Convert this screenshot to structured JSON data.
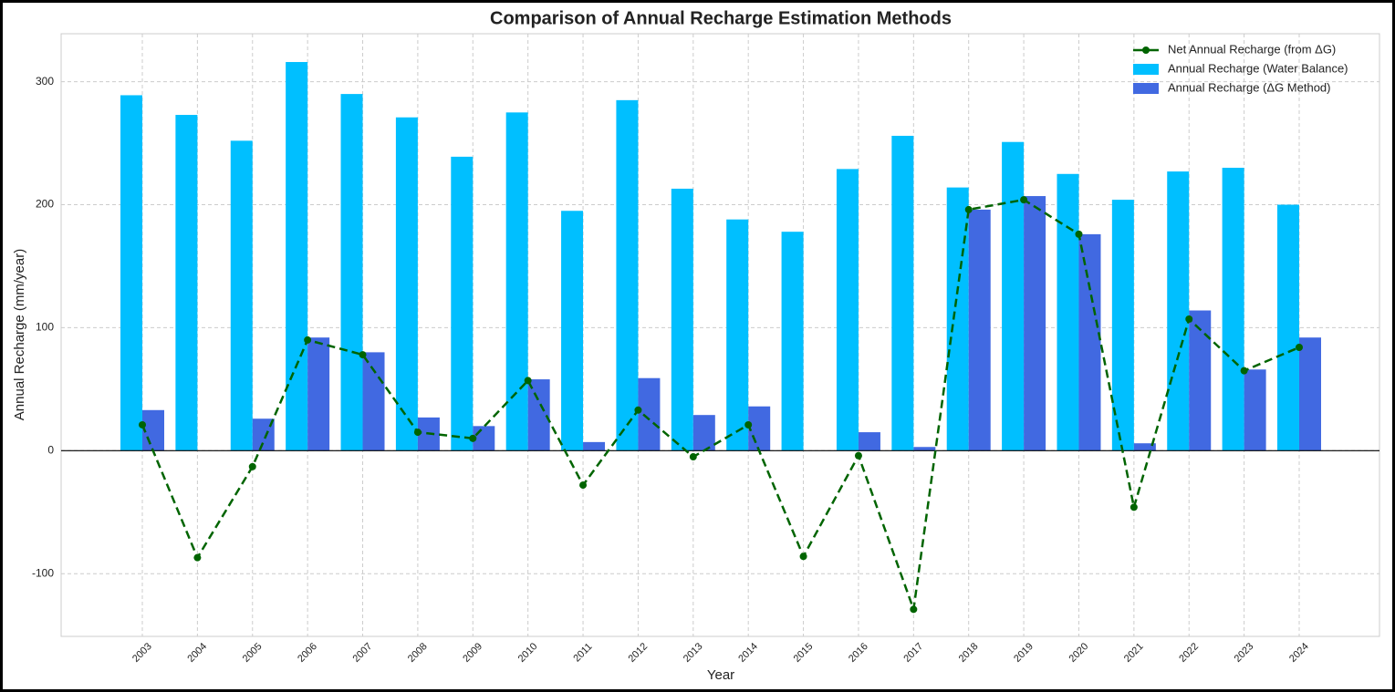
{
  "chart_data": {
    "type": "bar_line",
    "title": "Comparison of Annual Recharge Estimation Methods",
    "x_label": "Year",
    "y_label": "Annual Recharge (mm/year)",
    "categories": [
      "2003",
      "2004",
      "2005",
      "2006",
      "2007",
      "2008",
      "2009",
      "2010",
      "2011",
      "2012",
      "2013",
      "2014",
      "2015",
      "2016",
      "2017",
      "2018",
      "2019",
      "2020",
      "2021",
      "2022",
      "2023",
      "2024"
    ],
    "series": [
      {
        "name": "Net Annual Recharge (from ΔG)",
        "type": "line",
        "color": "#006400",
        "values": [
          21,
          -87,
          -13,
          90,
          78,
          15,
          10,
          57,
          -28,
          33,
          -5,
          21,
          -86,
          -4,
          -129,
          196,
          204,
          176,
          -46,
          107,
          65,
          84
        ]
      },
      {
        "name": "Annual Recharge (Water Balance)",
        "type": "bar",
        "color": "#00bfff",
        "values": [
          289,
          273,
          252,
          316,
          290,
          271,
          239,
          275,
          195,
          285,
          213,
          188,
          178,
          229,
          256,
          214,
          251,
          225,
          204,
          227,
          230,
          200
        ]
      },
      {
        "name": "Annual Recharge (ΔG Method)",
        "type": "bar",
        "color": "#4169e1",
        "values": [
          33,
          0,
          26,
          92,
          80,
          27,
          20,
          58,
          7,
          59,
          29,
          36,
          0,
          15,
          3,
          196,
          207,
          176,
          6,
          114,
          66,
          92
        ]
      }
    ],
    "ylim": [
      -151,
      339
    ],
    "yticks": [
      -100,
      0,
      100,
      200,
      300
    ],
    "grid": true,
    "legend": "upper right"
  }
}
